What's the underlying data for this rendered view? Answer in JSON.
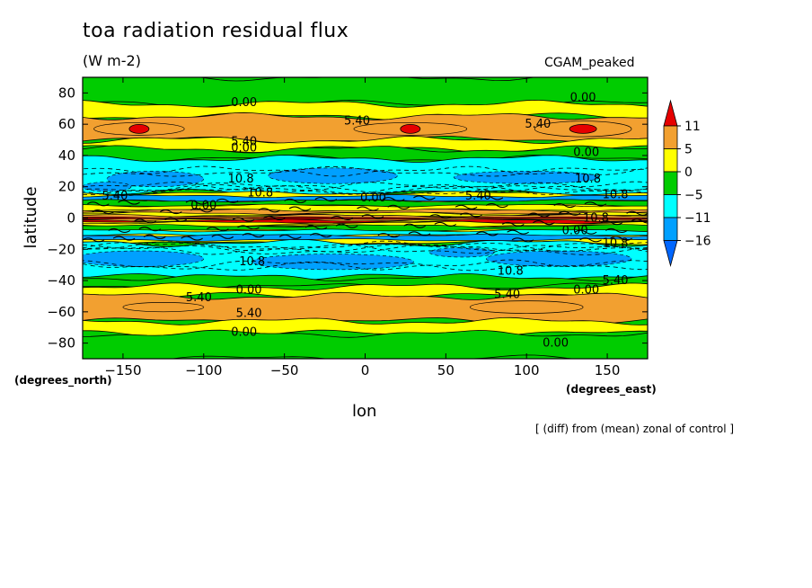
{
  "chart_data": {
    "type": "heatmap",
    "title": "toa radiation residual flux",
    "units": "(W m-2)",
    "dataset": "CGAM_peaked",
    "xlabel": "lon",
    "ylabel": "latitude",
    "x_units": "(degrees_east)",
    "y_units": "(degrees_north)",
    "note": "[ (diff) from (mean) zonal of control ]",
    "xlim": [
      -175,
      175
    ],
    "ylim": [
      -90,
      90
    ],
    "x_ticks": [
      -150,
      -100,
      -50,
      0,
      50,
      100,
      150
    ],
    "y_ticks": [
      -80,
      -60,
      -40,
      -20,
      0,
      20,
      40,
      60,
      80
    ],
    "colorbar": {
      "labels": [
        "11",
        "5",
        "0",
        "-5",
        "-11",
        "-16"
      ],
      "colors": [
        "#e60000",
        "#f2a030",
        "#ffff00",
        "#00cc00",
        "#00ffff",
        "#00a0ff",
        "#0066ff"
      ]
    },
    "latitude_bands": [
      {
        "lat": [
          73,
          90
        ],
        "level": "0 to -5"
      },
      {
        "lat": [
          65,
          73
        ],
        "level": "0 to 5"
      },
      {
        "lat": [
          50,
          65
        ],
        "level": "5 to 11"
      },
      {
        "lat": [
          44,
          50
        ],
        "level": "0 to 5"
      },
      {
        "lat": [
          38,
          44
        ],
        "level": "0 to -5"
      },
      {
        "lat": [
          16,
          38
        ],
        "level": "-5 to -11"
      },
      {
        "lat": [
          6,
          16
        ],
        "level": "mixed"
      },
      {
        "lat": [
          -6,
          6
        ],
        "level": "mixed"
      },
      {
        "lat": [
          -16,
          -6
        ],
        "level": "mixed"
      },
      {
        "lat": [
          -38,
          -16
        ],
        "level": "-5 to -11"
      },
      {
        "lat": [
          -44,
          -38
        ],
        "level": "0 to -5"
      },
      {
        "lat": [
          -50,
          -44
        ],
        "level": "0 to 5"
      },
      {
        "lat": [
          -66,
          -50
        ],
        "level": "5 to 11"
      },
      {
        "lat": [
          -74,
          -66
        ],
        "level": "0 to 5"
      },
      {
        "lat": [
          -90,
          -74
        ],
        "level": "0 to -5"
      }
    ],
    "maxima": [
      {
        "lon": -140,
        "lat": 57,
        "level": "> 11"
      },
      {
        "lon": 28,
        "lat": 57,
        "level": "> 11"
      },
      {
        "lon": 135,
        "lat": 57,
        "level": "> 11"
      }
    ],
    "contour_labels": [
      {
        "text": "0.00",
        "lon": -75,
        "lat": 74
      },
      {
        "text": "0.00",
        "lon": 135,
        "lat": 77
      },
      {
        "text": "5.40",
        "lon": -5,
        "lat": 62
      },
      {
        "text": "5.40",
        "lon": 107,
        "lat": 60
      },
      {
        "text": "5.40",
        "lon": -75,
        "lat": 49
      },
      {
        "text": "0.00",
        "lon": -75,
        "lat": 45
      },
      {
        "text": "0.00",
        "lon": 137,
        "lat": 42
      },
      {
        "text": "10.8",
        "lon": -77,
        "lat": 25
      },
      {
        "text": "10.8",
        "lon": 138,
        "lat": 25
      },
      {
        "text": "10.8",
        "lon": -65,
        "lat": 16
      },
      {
        "text": "10.8",
        "lon": 155,
        "lat": 15
      },
      {
        "text": "5.40",
        "lon": -155,
        "lat": 14
      },
      {
        "text": "0.00",
        "lon": 5,
        "lat": 13
      },
      {
        "text": "5.40",
        "lon": 70,
        "lat": 14
      },
      {
        "text": "0.00",
        "lon": -100,
        "lat": 8
      },
      {
        "text": "10.8",
        "lon": 143,
        "lat": 0
      },
      {
        "text": "0.00",
        "lon": 130,
        "lat": -8
      },
      {
        "text": "10.8",
        "lon": 155,
        "lat": -16
      },
      {
        "text": "10.8",
        "lon": -70,
        "lat": -28
      },
      {
        "text": "10.8",
        "lon": 90,
        "lat": -34
      },
      {
        "text": "5.40",
        "lon": 155,
        "lat": -40
      },
      {
        "text": "0.00",
        "lon": -72,
        "lat": -46
      },
      {
        "text": "0.00",
        "lon": 137,
        "lat": -46
      },
      {
        "text": "5.40",
        "lon": -103,
        "lat": -51
      },
      {
        "text": "5.40",
        "lon": 88,
        "lat": -49
      },
      {
        "text": "5.40",
        "lon": -72,
        "lat": -61
      },
      {
        "text": "0.00",
        "lon": -75,
        "lat": -73
      },
      {
        "text": "0.00",
        "lon": 118,
        "lat": -80
      }
    ]
  }
}
